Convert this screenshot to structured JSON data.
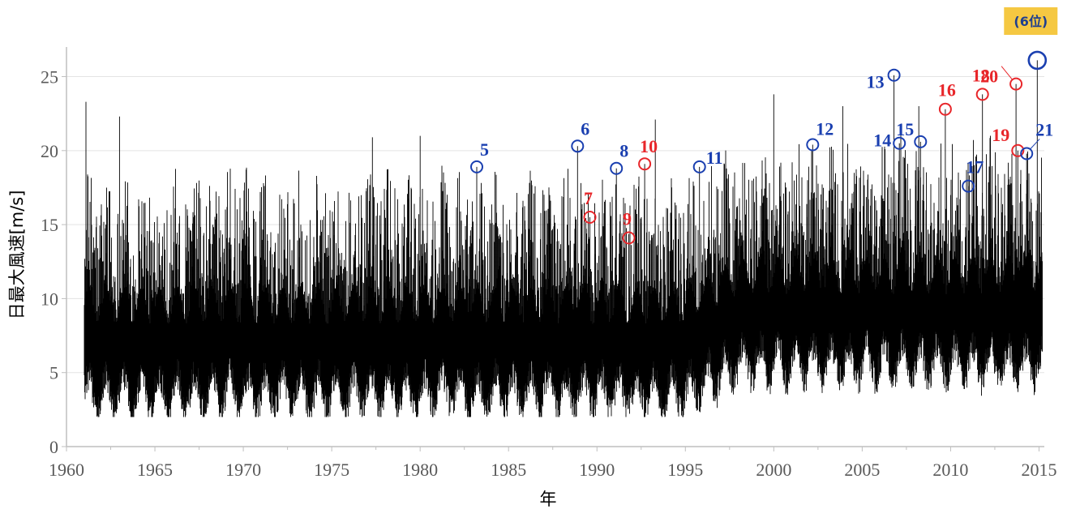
{
  "chart_data": {
    "type": "line",
    "title": "",
    "xlabel": "年",
    "ylabel": "日最大風速[m/s]",
    "xlim": [
      1960,
      2015.3
    ],
    "ylim": [
      0,
      27
    ],
    "x_ticks": [
      1960,
      1965,
      1970,
      1975,
      1980,
      1985,
      1990,
      1995,
      2000,
      2005,
      2010,
      2015
    ],
    "x_tick_labels": [
      "1960",
      "1965",
      "1970",
      "1975",
      "1980",
      "1985",
      "1990",
      "1995",
      "2000",
      "2005",
      "2010",
      "2015"
    ],
    "y_ticks": [
      0,
      5,
      10,
      15,
      20,
      25
    ],
    "y_tick_labels": [
      "0",
      "5",
      "10",
      "15",
      "20",
      "25"
    ],
    "grid": "horizontal",
    "series": [
      {
        "color": "#000000",
        "data_range": [
          1961,
          2015.2
        ],
        "baseline_approx": "≈7 m/s (1961–1995), ≈9 m/s (1995–2015)",
        "notable_spikes": [
          {
            "x": 1961.1,
            "y": 23.3
          },
          {
            "x": 1963.0,
            "y": 22.3
          },
          {
            "x": 1977.3,
            "y": 20.9
          },
          {
            "x": 1980.0,
            "y": 21.0
          },
          {
            "x": 1993.3,
            "y": 22.1
          },
          {
            "x": 2000.0,
            "y": 23.8
          },
          {
            "x": 2003.9,
            "y": 23.0
          },
          {
            "x": 2008.2,
            "y": 23.0
          }
        ]
      }
    ],
    "annotations": [
      {
        "label": "5",
        "x": 1983.2,
        "y": 18.9,
        "color": "#1a3fb0"
      },
      {
        "label": "6",
        "x": 1988.9,
        "y": 20.3,
        "color": "#1a3fb0"
      },
      {
        "label": "7",
        "x": 1989.6,
        "y": 15.5,
        "color": "#e8262a"
      },
      {
        "label": "8",
        "x": 1991.1,
        "y": 18.8,
        "color": "#1a3fb0"
      },
      {
        "label": "9",
        "x": 1991.8,
        "y": 14.1,
        "color": "#e8262a"
      },
      {
        "label": "10",
        "x": 1992.7,
        "y": 19.1,
        "color": "#e8262a"
      },
      {
        "label": "11",
        "x": 1995.8,
        "y": 18.9,
        "color": "#1a3fb0"
      },
      {
        "label": "12",
        "x": 2002.2,
        "y": 20.4,
        "color": "#1a3fb0"
      },
      {
        "label": "13",
        "x": 2006.8,
        "y": 25.1,
        "color": "#1a3fb0"
      },
      {
        "label": "14",
        "x": 2007.1,
        "y": 20.5,
        "color": "#1a3fb0"
      },
      {
        "label": "15",
        "x": 2008.3,
        "y": 20.6,
        "color": "#1a3fb0"
      },
      {
        "label": "16",
        "x": 2009.7,
        "y": 22.8,
        "color": "#e8262a"
      },
      {
        "label": "17",
        "x": 2011.0,
        "y": 17.6,
        "color": "#1a3fb0"
      },
      {
        "label": "18",
        "x": 2011.8,
        "y": 23.8,
        "color": "#e8262a"
      },
      {
        "label": "19",
        "x": 2013.8,
        "y": 20.0,
        "color": "#e8262a"
      },
      {
        "label": "20",
        "x": 2013.7,
        "y": 24.5,
        "color": "#e8262a"
      },
      {
        "label": "21",
        "x": 2014.3,
        "y": 19.8,
        "color": "#1a3fb0"
      },
      {
        "label": "",
        "x": 2014.9,
        "y": 26.1,
        "color": "#1a3fb0",
        "large": true
      }
    ],
    "badge": {
      "text": "(6位)",
      "background": "#f5c842"
    }
  }
}
